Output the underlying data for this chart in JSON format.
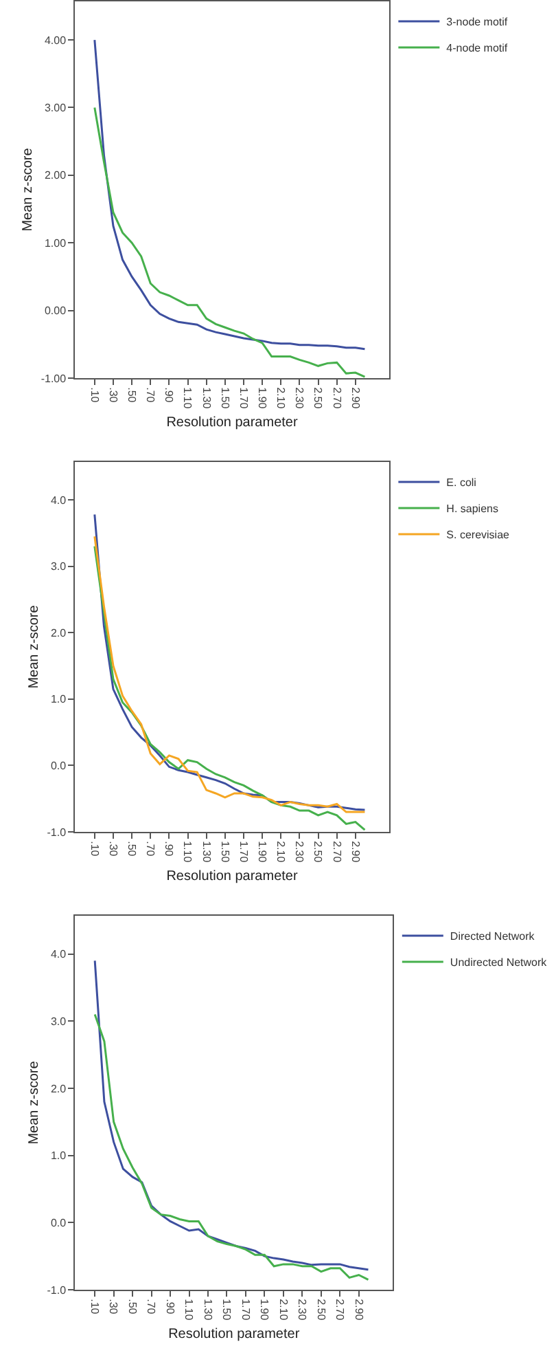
{
  "chart_data": [
    {
      "type": "line",
      "xlabel": "Resolution parameter",
      "ylabel": "Mean z-score",
      "x": [
        0.1,
        0.2,
        0.3,
        0.4,
        0.5,
        0.6,
        0.7,
        0.8,
        0.9,
        1.0,
        1.1,
        1.2,
        1.3,
        1.4,
        1.5,
        1.6,
        1.7,
        1.8,
        1.9,
        2.0,
        2.1,
        2.2,
        2.3,
        2.4,
        2.5,
        2.6,
        2.7,
        2.8,
        2.9,
        3.0
      ],
      "series": [
        {
          "name": "3-node motif",
          "color": "#3d4f9f",
          "values": [
            4.0,
            2.3,
            1.25,
            0.75,
            0.5,
            0.3,
            0.08,
            -0.05,
            -0.12,
            -0.17,
            -0.19,
            -0.21,
            -0.28,
            -0.32,
            -0.35,
            -0.38,
            -0.41,
            -0.43,
            -0.45,
            -0.48,
            -0.49,
            -0.49,
            -0.51,
            -0.51,
            -0.52,
            -0.52,
            -0.53,
            -0.55,
            -0.55,
            -0.57
          ]
        },
        {
          "name": "4-node motif",
          "color": "#46b04c",
          "values": [
            3.0,
            2.2,
            1.45,
            1.15,
            1.0,
            0.8,
            0.4,
            0.27,
            0.22,
            0.15,
            0.08,
            0.08,
            -0.12,
            -0.2,
            -0.25,
            -0.3,
            -0.34,
            -0.42,
            -0.48,
            -0.68,
            -0.68,
            -0.68,
            -0.73,
            -0.77,
            -0.82,
            -0.78,
            -0.77,
            -0.93,
            -0.92,
            -0.98
          ]
        }
      ],
      "xlim": [
        -0.11,
        3.26
      ],
      "xticks": [
        {
          "value": 0.1,
          "label": ".10"
        },
        {
          "value": 0.3,
          "label": ".30"
        },
        {
          "value": 0.5,
          "label": ".50"
        },
        {
          "value": 0.7,
          "label": ".70"
        },
        {
          "value": 0.9,
          "label": ".90"
        },
        {
          "value": 1.1,
          "label": "1.10"
        },
        {
          "value": 1.3,
          "label": "1.30"
        },
        {
          "value": 1.5,
          "label": "1.50"
        },
        {
          "value": 1.7,
          "label": "1.70"
        },
        {
          "value": 1.9,
          "label": "1.90"
        },
        {
          "value": 2.1,
          "label": "2.10"
        },
        {
          "value": 2.3,
          "label": "2.30"
        },
        {
          "value": 2.5,
          "label": "2.50"
        },
        {
          "value": 2.7,
          "label": "2.70"
        },
        {
          "value": 2.9,
          "label": "2.90"
        }
      ],
      "ylim": [
        -1,
        4.57
      ],
      "yticks": [
        {
          "value": -1,
          "label": "-1.00"
        },
        {
          "value": 0,
          "label": "0.00"
        },
        {
          "value": 1,
          "label": "1.00"
        },
        {
          "value": 2,
          "label": "2.00"
        },
        {
          "value": 3,
          "label": "3.00"
        },
        {
          "value": 4,
          "label": "4.00"
        }
      ],
      "legend": "top right",
      "marker": "none",
      "line_style": "solid"
    },
    {
      "type": "line",
      "xlabel": "Resolution parameter",
      "ylabel": "Mean z-score",
      "x": [
        0.1,
        0.2,
        0.3,
        0.4,
        0.5,
        0.6,
        0.7,
        0.8,
        0.9,
        1.0,
        1.1,
        1.2,
        1.3,
        1.4,
        1.5,
        1.6,
        1.7,
        1.8,
        1.9,
        2.0,
        2.1,
        2.2,
        2.3,
        2.4,
        2.5,
        2.6,
        2.7,
        2.8,
        2.9,
        3.0
      ],
      "series": [
        {
          "name": "E. coli",
          "color": "#3d4f9f",
          "values": [
            3.78,
            2.1,
            1.15,
            0.85,
            0.58,
            0.42,
            0.3,
            0.15,
            -0.02,
            -0.07,
            -0.1,
            -0.14,
            -0.18,
            -0.22,
            -0.27,
            -0.35,
            -0.42,
            -0.44,
            -0.45,
            -0.55,
            -0.55,
            -0.55,
            -0.57,
            -0.6,
            -0.63,
            -0.62,
            -0.62,
            -0.64,
            -0.66,
            -0.67
          ]
        },
        {
          "name": "H. sapiens",
          "color": "#46b04c",
          "values": [
            3.3,
            2.3,
            1.3,
            0.95,
            0.8,
            0.6,
            0.32,
            0.2,
            0.05,
            -0.05,
            0.08,
            0.05,
            -0.05,
            -0.13,
            -0.18,
            -0.25,
            -0.3,
            -0.38,
            -0.45,
            -0.55,
            -0.6,
            -0.62,
            -0.68,
            -0.68,
            -0.75,
            -0.7,
            -0.75,
            -0.88,
            -0.85,
            -0.97
          ]
        },
        {
          "name": "S. cerevisiae",
          "color": "#f5a623",
          "values": [
            3.45,
            2.4,
            1.5,
            1.05,
            0.82,
            0.62,
            0.18,
            0.02,
            0.15,
            0.1,
            -0.08,
            -0.1,
            -0.37,
            -0.42,
            -0.48,
            -0.42,
            -0.42,
            -0.47,
            -0.48,
            -0.52,
            -0.6,
            -0.55,
            -0.58,
            -0.6,
            -0.6,
            -0.62,
            -0.58,
            -0.7,
            -0.7,
            -0.7
          ]
        }
      ],
      "xlim": [
        -0.11,
        3.26
      ],
      "xticks": [
        {
          "value": 0.1,
          "label": ".10"
        },
        {
          "value": 0.3,
          "label": ".30"
        },
        {
          "value": 0.5,
          "label": ".50"
        },
        {
          "value": 0.7,
          "label": ".70"
        },
        {
          "value": 0.9,
          "label": ".90"
        },
        {
          "value": 1.1,
          "label": "1.10"
        },
        {
          "value": 1.3,
          "label": "1.30"
        },
        {
          "value": 1.5,
          "label": "1.50"
        },
        {
          "value": 1.7,
          "label": "1.70"
        },
        {
          "value": 1.9,
          "label": "1.90"
        },
        {
          "value": 2.1,
          "label": "2.10"
        },
        {
          "value": 2.3,
          "label": "2.30"
        },
        {
          "value": 2.5,
          "label": "2.50"
        },
        {
          "value": 2.7,
          "label": "2.70"
        },
        {
          "value": 2.9,
          "label": "2.90"
        }
      ],
      "ylim": [
        -1,
        4.57
      ],
      "yticks": [
        {
          "value": -1,
          "label": "-1.0"
        },
        {
          "value": 0,
          "label": "0.0"
        },
        {
          "value": 1,
          "label": "1.0"
        },
        {
          "value": 2,
          "label": "2.0"
        },
        {
          "value": 3,
          "label": "3.0"
        },
        {
          "value": 4,
          "label": "4.0"
        }
      ],
      "legend": "top right",
      "marker": "none",
      "line_style": "solid"
    },
    {
      "type": "line",
      "xlabel": "Resolution parameter",
      "ylabel": "Mean z-score",
      "x": [
        0.1,
        0.2,
        0.3,
        0.4,
        0.5,
        0.6,
        0.7,
        0.8,
        0.9,
        1.0,
        1.1,
        1.2,
        1.3,
        1.4,
        1.5,
        1.6,
        1.7,
        1.8,
        1.9,
        2.0,
        2.1,
        2.2,
        2.3,
        2.4,
        2.5,
        2.6,
        2.7,
        2.8,
        2.9,
        3.0
      ],
      "series": [
        {
          "name": "Directed Network",
          "color": "#3d4f9f",
          "values": [
            3.9,
            1.8,
            1.2,
            0.8,
            0.68,
            0.6,
            0.25,
            0.12,
            0.02,
            -0.05,
            -0.12,
            -0.1,
            -0.2,
            -0.25,
            -0.3,
            -0.35,
            -0.38,
            -0.42,
            -0.5,
            -0.53,
            -0.55,
            -0.58,
            -0.6,
            -0.63,
            -0.62,
            -0.62,
            -0.62,
            -0.66,
            -0.68,
            -0.7
          ]
        },
        {
          "name": "Undirected Network",
          "color": "#46b04c",
          "values": [
            3.1,
            2.7,
            1.5,
            1.1,
            0.82,
            0.58,
            0.22,
            0.12,
            0.1,
            0.05,
            0.02,
            0.02,
            -0.2,
            -0.28,
            -0.32,
            -0.35,
            -0.4,
            -0.48,
            -0.48,
            -0.65,
            -0.62,
            -0.62,
            -0.65,
            -0.65,
            -0.73,
            -0.68,
            -0.68,
            -0.82,
            -0.78,
            -0.85
          ]
        }
      ],
      "xlim": [
        -0.11,
        3.26
      ],
      "xticks": [
        {
          "value": 0.1,
          "label": ".10"
        },
        {
          "value": 0.3,
          "label": ".30"
        },
        {
          "value": 0.5,
          "label": ".50"
        },
        {
          "value": 0.7,
          "label": ".70"
        },
        {
          "value": 0.9,
          "label": ".90"
        },
        {
          "value": 1.1,
          "label": "1.10"
        },
        {
          "value": 1.3,
          "label": "1.30"
        },
        {
          "value": 1.5,
          "label": "1.50"
        },
        {
          "value": 1.7,
          "label": "1.70"
        },
        {
          "value": 1.9,
          "label": "1.90"
        },
        {
          "value": 2.1,
          "label": "2.10"
        },
        {
          "value": 2.3,
          "label": "2.30"
        },
        {
          "value": 2.5,
          "label": "2.50"
        },
        {
          "value": 2.7,
          "label": "2.70"
        },
        {
          "value": 2.9,
          "label": "2.90"
        }
      ],
      "ylim": [
        -1,
        4.57
      ],
      "yticks": [
        {
          "value": -1,
          "label": "-1.0"
        },
        {
          "value": 0,
          "label": "0.0"
        },
        {
          "value": 1,
          "label": "1.0"
        },
        {
          "value": 2,
          "label": "2.0"
        },
        {
          "value": 3,
          "label": "3.0"
        },
        {
          "value": 4,
          "label": "4.0"
        }
      ],
      "legend": "top right",
      "marker": "none",
      "line_style": "solid"
    }
  ]
}
